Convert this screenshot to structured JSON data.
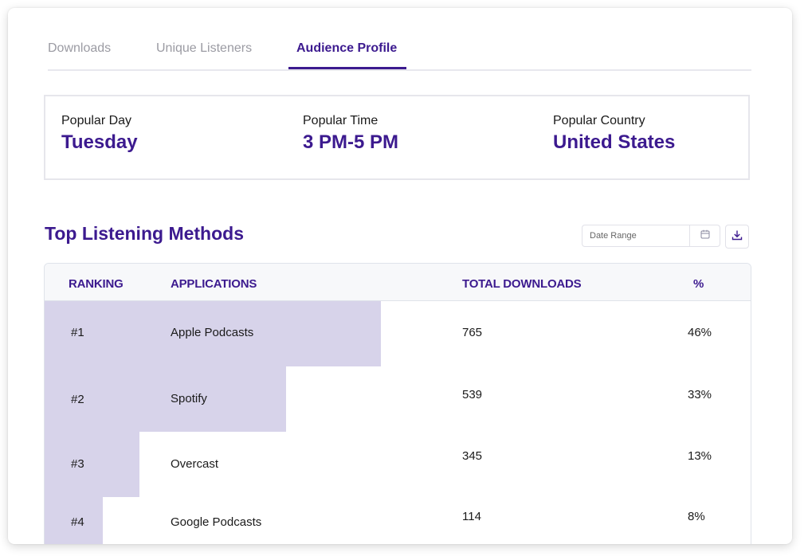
{
  "tabs": [
    {
      "label": "Downloads",
      "active": false
    },
    {
      "label": "Unique Listeners",
      "active": false
    },
    {
      "label": "Audience Profile",
      "active": true
    }
  ],
  "stats": {
    "popular_day": {
      "label": "Popular Day",
      "value": "Tuesday"
    },
    "popular_time": {
      "label": "Popular Time",
      "value": "3 PM-5 PM"
    },
    "popular_country": {
      "label": "Popular Country",
      "value": "United States"
    }
  },
  "section": {
    "title": "Top Listening Methods",
    "date_range_placeholder": "Date Range",
    "calendar_icon": "calendar-icon",
    "download_icon": "download-icon"
  },
  "table": {
    "headers": {
      "ranking": "RANKING",
      "applications": "APPLICATIONS",
      "total_downloads": "TOTAL DOWNLOADS",
      "percent": "%"
    },
    "rows": [
      {
        "rank": "#1",
        "app": "Apple  Podcasts",
        "downloads": "765",
        "percent": "46%",
        "share": 0.46
      },
      {
        "rank": "#2",
        "app": "Spotify",
        "downloads": "539",
        "percent": "33%",
        "share": 0.33
      },
      {
        "rank": "#3",
        "app": "Overcast",
        "downloads": "345",
        "percent": "13%",
        "share": 0.13
      },
      {
        "rank": "#4",
        "app": "Google Podcasts",
        "downloads": "114",
        "percent": "8%",
        "share": 0.08
      }
    ]
  },
  "colors": {
    "accent": "#3c1a8f",
    "bar_fill": "#d7d3ea",
    "muted_text": "#9b9ba3"
  }
}
